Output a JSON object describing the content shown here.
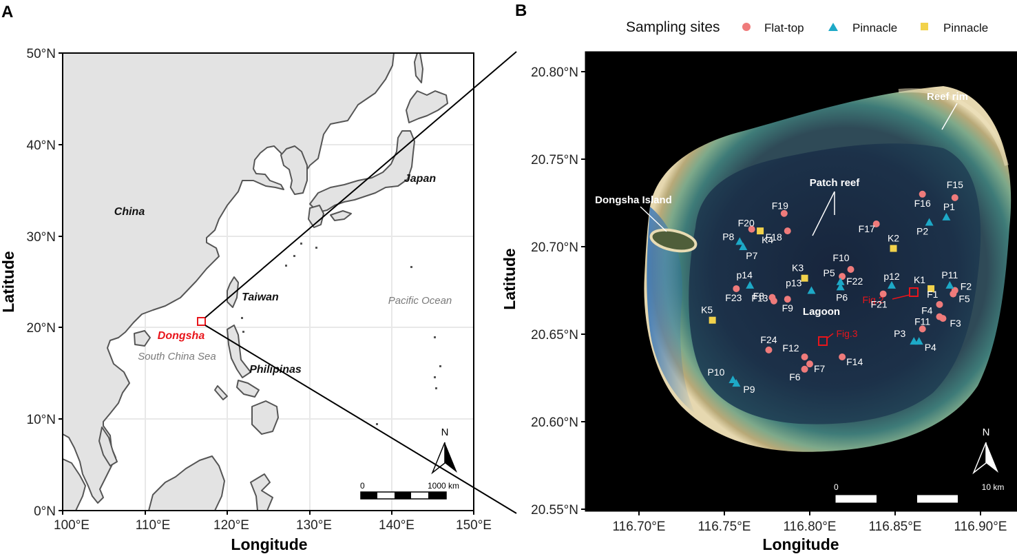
{
  "panel_a": {
    "label": "A",
    "y_ticks": [
      "50°N",
      "40°N",
      "30°N",
      "20°N",
      "10°N",
      "0°N"
    ],
    "x_ticks": [
      "100°E",
      "110°E",
      "120°E",
      "130°E",
      "140°E",
      "150°E"
    ],
    "x_axis_label": "Longitude",
    "y_axis_label": "Latitude",
    "places": {
      "china": "China",
      "japan": "Japan",
      "taiwan": "Taiwan",
      "dongsha": "Dongsha",
      "philipinas": "Philipinas",
      "pacific": "Pacific Ocean",
      "scs": "South China Sea"
    },
    "north_arrow": "N",
    "scalebar": {
      "start": "0",
      "end": "1000 km"
    },
    "colors": {
      "land": "#e3e3e3",
      "coast": "#555555",
      "highlight": "#e8151b"
    }
  },
  "panel_b": {
    "label": "B",
    "y_ticks": [
      "20.80°N",
      "20.75°N",
      "20.70°N",
      "20.65°N",
      "20.60°N",
      "20.55°N"
    ],
    "x_ticks": [
      "116.70°E",
      "116.75°E",
      "116.80°E",
      "116.85°E",
      "116.90°E"
    ],
    "x_axis_label": "Longitude",
    "y_axis_label": "Latitude",
    "legend": {
      "title": "Sampling sites",
      "items": [
        {
          "label": "Flat-top",
          "shape": "circle",
          "color": "#ef7b7b"
        },
        {
          "label": "Pinnacle",
          "shape": "triangle",
          "color": "#1da9c7"
        },
        {
          "label": "Pinnacle",
          "shape": "square",
          "color": "#f2d24b"
        }
      ]
    },
    "features": {
      "reef_rim": "Reef rim",
      "patch_reef": "Patch reef",
      "dongsha_island": "Dongsha Island",
      "lagoon": "Lagoon",
      "fig2": "Fig.2",
      "fig3": "Fig.3"
    },
    "north_arrow": "N",
    "scalebar": {
      "start": "0",
      "end": "10 km"
    },
    "sites": [
      {
        "id": "F1",
        "type": "flat",
        "lon": 116.876,
        "lat": 20.667
      },
      {
        "id": "F2",
        "type": "flat",
        "lon": 116.885,
        "lat": 20.675
      },
      {
        "id": "F3",
        "type": "flat",
        "lon": 116.878,
        "lat": 20.659
      },
      {
        "id": "F4",
        "type": "flat",
        "lon": 116.876,
        "lat": 20.66
      },
      {
        "id": "F5",
        "type": "flat",
        "lon": 116.884,
        "lat": 20.673
      },
      {
        "id": "F6",
        "type": "flat",
        "lon": 116.797,
        "lat": 20.63
      },
      {
        "id": "F7",
        "type": "flat",
        "lon": 116.8,
        "lat": 20.633
      },
      {
        "id": "F8",
        "type": "flat",
        "lon": 116.779,
        "lat": 20.669
      },
      {
        "id": "F9",
        "type": "flat",
        "lon": 116.787,
        "lat": 20.67
      },
      {
        "id": "F10",
        "type": "flat",
        "lon": 116.824,
        "lat": 20.687
      },
      {
        "id": "F11",
        "type": "flat",
        "lon": 116.866,
        "lat": 20.653
      },
      {
        "id": "F12",
        "type": "flat",
        "lon": 116.797,
        "lat": 20.637
      },
      {
        "id": "F13",
        "type": "flat",
        "lon": 116.778,
        "lat": 20.671
      },
      {
        "id": "F14",
        "type": "flat",
        "lon": 116.819,
        "lat": 20.637
      },
      {
        "id": "F15",
        "type": "flat",
        "lon": 116.885,
        "lat": 20.728
      },
      {
        "id": "F16",
        "type": "flat",
        "lon": 116.866,
        "lat": 20.73
      },
      {
        "id": "F17",
        "type": "flat",
        "lon": 116.839,
        "lat": 20.713
      },
      {
        "id": "F18",
        "type": "flat",
        "lon": 116.787,
        "lat": 20.709
      },
      {
        "id": "F19",
        "type": "flat",
        "lon": 116.785,
        "lat": 20.719
      },
      {
        "id": "F20",
        "type": "flat",
        "lon": 116.766,
        "lat": 20.71
      },
      {
        "id": "F21",
        "type": "flat",
        "lon": 116.843,
        "lat": 20.673
      },
      {
        "id": "F22",
        "type": "flat",
        "lon": 116.819,
        "lat": 20.683
      },
      {
        "id": "F23",
        "type": "flat",
        "lon": 116.757,
        "lat": 20.676
      },
      {
        "id": "F24",
        "type": "flat",
        "lon": 116.776,
        "lat": 20.641
      },
      {
        "id": "P1",
        "type": "pin",
        "lon": 116.88,
        "lat": 20.717
      },
      {
        "id": "P2",
        "type": "pin",
        "lon": 116.87,
        "lat": 20.714
      },
      {
        "id": "P3",
        "type": "pin",
        "lon": 116.861,
        "lat": 20.646
      },
      {
        "id": "P4",
        "type": "pin",
        "lon": 116.864,
        "lat": 20.646
      },
      {
        "id": "P5",
        "type": "pin",
        "lon": 116.818,
        "lat": 20.68
      },
      {
        "id": "P6",
        "type": "pin",
        "lon": 116.818,
        "lat": 20.677
      },
      {
        "id": "P7",
        "type": "pin",
        "lon": 116.761,
        "lat": 20.7
      },
      {
        "id": "P8",
        "type": "pin",
        "lon": 116.759,
        "lat": 20.703
      },
      {
        "id": "P9",
        "type": "pin",
        "lon": 116.757,
        "lat": 20.622
      },
      {
        "id": "P10",
        "type": "pin",
        "lon": 116.755,
        "lat": 20.624
      },
      {
        "id": "P11",
        "type": "pin",
        "lon": 116.882,
        "lat": 20.678
      },
      {
        "id": "p12",
        "type": "pin",
        "lon": 116.848,
        "lat": 20.678
      },
      {
        "id": "p13",
        "type": "pin",
        "lon": 116.801,
        "lat": 20.675
      },
      {
        "id": "p14",
        "type": "pin",
        "lon": 116.765,
        "lat": 20.678
      },
      {
        "id": "K1",
        "type": "sq",
        "lon": 116.871,
        "lat": 20.676
      },
      {
        "id": "K2",
        "type": "sq",
        "lon": 116.849,
        "lat": 20.699
      },
      {
        "id": "K3",
        "type": "sq",
        "lon": 116.797,
        "lat": 20.682
      },
      {
        "id": "K4",
        "type": "sq",
        "lon": 116.771,
        "lat": 20.709
      },
      {
        "id": "K5",
        "type": "sq",
        "lon": 116.743,
        "lat": 20.658
      }
    ]
  }
}
